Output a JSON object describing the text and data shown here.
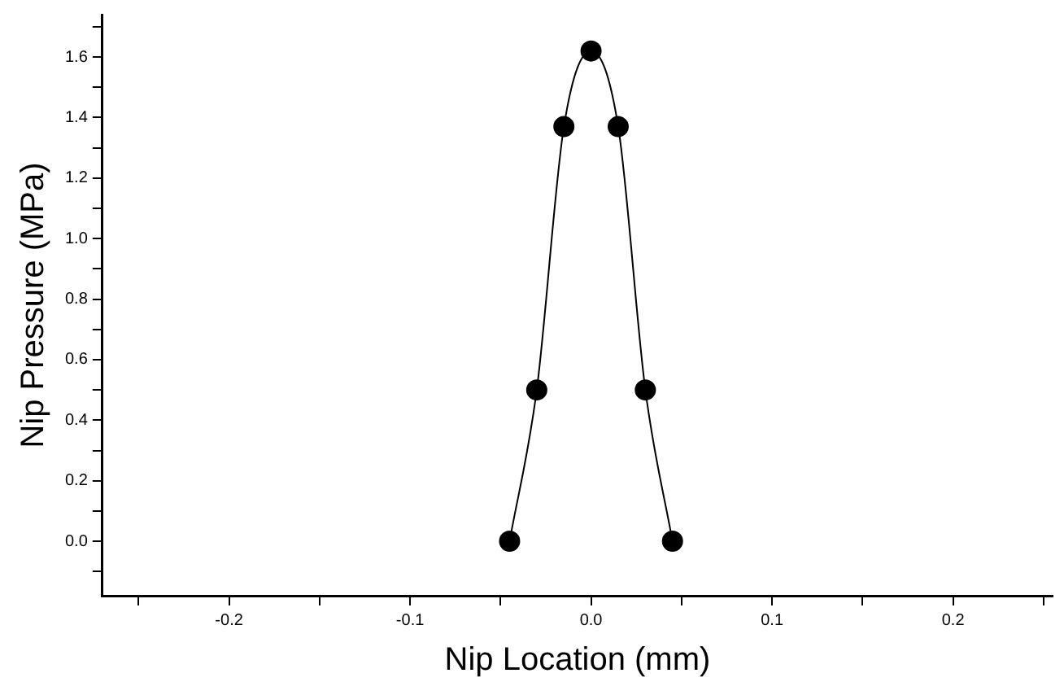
{
  "chart_data": {
    "type": "line",
    "xlabel": "Nip Location (mm)",
    "ylabel": "Nip Pressure (MPa)",
    "x": [
      -0.045,
      -0.03,
      -0.015,
      0,
      0.015,
      0.03,
      0.045
    ],
    "series": [
      {
        "color": "#000000",
        "values": [
          0,
          0.5,
          1.37,
          1.62,
          1.37,
          0.5,
          0
        ]
      }
    ],
    "xlim": [
      -0.27,
      0.255
    ],
    "ylim": [
      -0.18,
      1.74
    ],
    "xticks": [
      {
        "value": -0.25,
        "label": null
      },
      {
        "value": -0.2,
        "label": "-0.2"
      },
      {
        "value": -0.15,
        "label": null
      },
      {
        "value": -0.1,
        "label": "-0.1"
      },
      {
        "value": -0.05,
        "label": null
      },
      {
        "value": 0,
        "label": "0.0"
      },
      {
        "value": 0.05,
        "label": null
      },
      {
        "value": 0.1,
        "label": "0.1"
      },
      {
        "value": 0.15,
        "label": null
      },
      {
        "value": 0.2,
        "label": "0.2"
      },
      {
        "value": 0.25,
        "label": null
      }
    ],
    "yticks": [
      {
        "value": -0.1,
        "label": null
      },
      {
        "value": 0,
        "label": "0.0"
      },
      {
        "value": 0.1,
        "label": null
      },
      {
        "value": 0.2,
        "label": "0.2"
      },
      {
        "value": 0.3,
        "label": null
      },
      {
        "value": 0.4,
        "label": "0.4"
      },
      {
        "value": 0.5,
        "label": null
      },
      {
        "value": 0.6,
        "label": "0.6"
      },
      {
        "value": 0.7,
        "label": null
      },
      {
        "value": 0.8,
        "label": "0.8"
      },
      {
        "value": 0.9,
        "label": null
      },
      {
        "value": 1.0,
        "label": "1.0"
      },
      {
        "value": 1.1,
        "label": null
      },
      {
        "value": 1.2,
        "label": "1.2"
      },
      {
        "value": 1.3,
        "label": null
      },
      {
        "value": 1.4,
        "label": "1.4"
      },
      {
        "value": 1.5,
        "label": null
      },
      {
        "value": 1.6,
        "label": "1.6"
      },
      {
        "value": 1.7,
        "label": null
      }
    ],
    "grid": false,
    "legend": false,
    "marker": "circle",
    "line_style": "solid"
  }
}
